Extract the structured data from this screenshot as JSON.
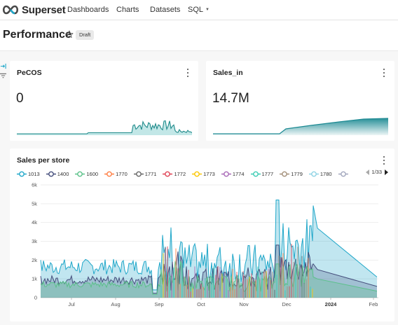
{
  "nav": {
    "brand": "Superset",
    "links": [
      "Dashboards",
      "Charts",
      "Datasets",
      "SQL"
    ]
  },
  "dashboard": {
    "title": "Performance",
    "status": "Draft"
  },
  "icons": [
    "superset-logo-icon",
    "star-icon",
    "expand-filters-icon",
    "filter-icon",
    "more-options-icon",
    "caret-down-icon"
  ],
  "colors": {
    "accent": "#20a7c9",
    "pecos_line": "#1e8a8a",
    "sales_in_fill": "#1d8a93"
  },
  "cards": {
    "pecos": {
      "title": "PeCOS",
      "value": "0"
    },
    "sales_in": {
      "title": "Sales_in",
      "value": "14.7M"
    },
    "sales_per_store": {
      "title": "Sales per store",
      "legend": [
        "1013",
        "1400",
        "1600",
        "1770",
        "1771",
        "1772",
        "1773",
        "1774",
        "1777",
        "1779",
        "1780"
      ],
      "pager": "1/33"
    }
  },
  "chart_data": {
    "type": "area",
    "title": "Sales per store",
    "y_ticks": [
      "0",
      "1k",
      "2k",
      "3k",
      "4k",
      "5k",
      "6k"
    ],
    "ylim": [
      0,
      6000
    ],
    "x_ticks": [
      "Jul",
      "Aug",
      "Sep",
      "Oct",
      "Nov",
      "Dec",
      "2024",
      "Feb"
    ],
    "legend_placement": "top",
    "series": [
      {
        "name": "1013",
        "color": "#1fa7c9",
        "values_approx": [
          1600,
          1500,
          1400,
          2700,
          3000,
          4900,
          1200
        ]
      },
      {
        "name": "1400",
        "color": "#454e7c",
        "values_approx": [
          1100,
          800,
          700,
          900,
          1500,
          1600,
          700
        ]
      },
      {
        "name": "1600",
        "color": "#5ac189",
        "values_approx": [
          700,
          600,
          500,
          500,
          800,
          1000,
          400
        ]
      }
    ],
    "grid": true
  }
}
